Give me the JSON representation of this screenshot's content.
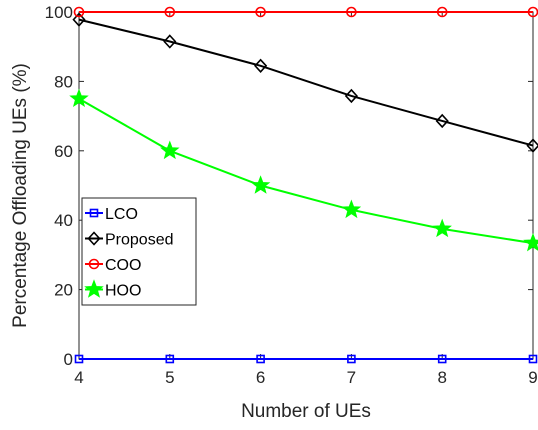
{
  "chart_data": {
    "type": "line",
    "xlabel": "Number of UEs",
    "ylabel": "Percentage Offloading UEs (%)",
    "x": [
      4,
      5,
      6,
      7,
      8,
      9
    ],
    "xlim": [
      4,
      9
    ],
    "ylim": [
      0,
      100
    ],
    "xticks": [
      4,
      5,
      6,
      7,
      8,
      9
    ],
    "yticks": [
      0,
      20,
      40,
      60,
      80,
      100
    ],
    "grid": false,
    "legend_position": "middle-left",
    "series": [
      {
        "name": "LCO",
        "values": [
          0,
          0,
          0,
          0,
          0,
          0
        ],
        "color": "#0000ff",
        "marker": "square"
      },
      {
        "name": "Proposed",
        "values": [
          97.8,
          91.5,
          84.5,
          75.8,
          68.6,
          61.5
        ],
        "color": "#000000",
        "marker": "diamond"
      },
      {
        "name": "COO",
        "values": [
          100,
          100,
          100,
          100,
          100,
          100
        ],
        "color": "#ff0000",
        "marker": "circle"
      },
      {
        "name": "HOO",
        "values": [
          75,
          60,
          50,
          43,
          37.5,
          33.4
        ],
        "color": "#00ff00",
        "marker": "star"
      }
    ]
  }
}
